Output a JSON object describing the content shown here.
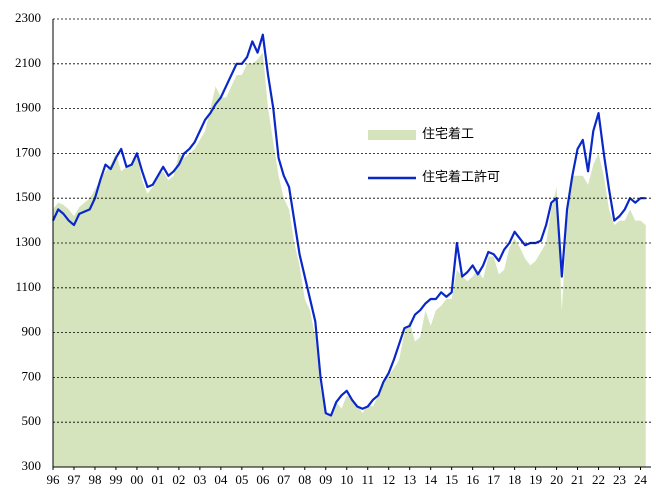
{
  "chart_data": {
    "type": "area-line",
    "x": [
      1996,
      1996.25,
      1996.5,
      1996.75,
      1997,
      1997.25,
      1997.5,
      1997.75,
      1998,
      1998.25,
      1998.5,
      1998.75,
      1999,
      1999.25,
      1999.5,
      1999.75,
      2000,
      2000.25,
      2000.5,
      2000.75,
      2001,
      2001.25,
      2001.5,
      2001.75,
      2002,
      2002.25,
      2002.5,
      2002.75,
      2003,
      2003.25,
      2003.5,
      2003.75,
      2004,
      2004.25,
      2004.5,
      2004.75,
      2005,
      2005.25,
      2005.5,
      2005.75,
      2006,
      2006.25,
      2006.5,
      2006.75,
      2007,
      2007.25,
      2007.5,
      2007.75,
      2008,
      2008.25,
      2008.5,
      2008.75,
      2009,
      2009.25,
      2009.5,
      2009.75,
      2010,
      2010.25,
      2010.5,
      2010.75,
      2011,
      2011.25,
      2011.5,
      2011.75,
      2012,
      2012.25,
      2012.5,
      2012.75,
      2013,
      2013.25,
      2013.5,
      2013.75,
      2014,
      2014.25,
      2014.5,
      2014.75,
      2015,
      2015.25,
      2015.5,
      2015.75,
      2016,
      2016.25,
      2016.5,
      2016.75,
      2017,
      2017.25,
      2017.5,
      2017.75,
      2018,
      2018.25,
      2018.5,
      2018.75,
      2019,
      2019.25,
      2019.5,
      2019.75,
      2020,
      2020.25,
      2020.5,
      2020.75,
      2021,
      2021.25,
      2021.5,
      2021.75,
      2022,
      2022.25,
      2022.5,
      2022.75,
      2023,
      2023.25,
      2023.5,
      2023.75,
      2024,
      2024.25
    ],
    "series": [
      {
        "name": "住宅着工",
        "color": "#d6e4bd",
        "values": [
          1450,
          1480,
          1470,
          1450,
          1420,
          1460,
          1480,
          1500,
          1540,
          1580,
          1620,
          1650,
          1700,
          1620,
          1640,
          1650,
          1700,
          1580,
          1520,
          1550,
          1600,
          1620,
          1580,
          1600,
          1700,
          1680,
          1700,
          1720,
          1760,
          1800,
          1900,
          2000,
          1950,
          1950,
          2000,
          2050,
          2050,
          2100,
          2100,
          2120,
          2150,
          1900,
          1750,
          1600,
          1500,
          1450,
          1300,
          1200,
          1050,
          1000,
          880,
          650,
          530,
          540,
          590,
          560,
          620,
          600,
          580,
          540,
          580,
          570,
          620,
          680,
          710,
          740,
          780,
          900,
          950,
          860,
          880,
          1000,
          930,
          1000,
          1020,
          1050,
          1050,
          1180,
          1150,
          1130,
          1150,
          1180,
          1140,
          1240,
          1240,
          1160,
          1180,
          1280,
          1320,
          1280,
          1230,
          1200,
          1220,
          1260,
          1300,
          1450,
          1550,
          1000,
          1400,
          1600,
          1600,
          1600,
          1560,
          1650,
          1700,
          1600,
          1450,
          1380,
          1400,
          1400,
          1450,
          1400,
          1400,
          1380
        ]
      },
      {
        "name": "住宅着工許可",
        "color": "#0a28c8",
        "values": [
          1400,
          1450,
          1430,
          1400,
          1380,
          1430,
          1440,
          1450,
          1500,
          1580,
          1650,
          1630,
          1680,
          1720,
          1640,
          1650,
          1700,
          1620,
          1550,
          1560,
          1600,
          1640,
          1600,
          1620,
          1650,
          1700,
          1720,
          1750,
          1800,
          1850,
          1880,
          1920,
          1950,
          2000,
          2050,
          2100,
          2100,
          2130,
          2200,
          2150,
          2230,
          2050,
          1900,
          1680,
          1600,
          1550,
          1400,
          1250,
          1150,
          1050,
          950,
          700,
          540,
          530,
          590,
          620,
          640,
          600,
          570,
          560,
          570,
          600,
          620,
          680,
          720,
          780,
          850,
          920,
          930,
          980,
          1000,
          1030,
          1050,
          1050,
          1080,
          1060,
          1080,
          1300,
          1150,
          1170,
          1200,
          1160,
          1200,
          1260,
          1250,
          1220,
          1270,
          1300,
          1350,
          1320,
          1290,
          1300,
          1300,
          1310,
          1380,
          1480,
          1500,
          1150,
          1450,
          1600,
          1720,
          1760,
          1620,
          1800,
          1880,
          1700,
          1540,
          1400,
          1420,
          1450,
          1500,
          1480,
          1500,
          1500
        ]
      }
    ],
    "xlim": [
      1996,
      2024.5
    ],
    "xticks": [
      {
        "value": 1996,
        "label": "96"
      },
      {
        "value": 1997,
        "label": "97"
      },
      {
        "value": 1998,
        "label": "98"
      },
      {
        "value": 1999,
        "label": "99"
      },
      {
        "value": 2000,
        "label": "00"
      },
      {
        "value": 2001,
        "label": "01"
      },
      {
        "value": 2002,
        "label": "02"
      },
      {
        "value": 2003,
        "label": "03"
      },
      {
        "value": 2004,
        "label": "04"
      },
      {
        "value": 2005,
        "label": "05"
      },
      {
        "value": 2006,
        "label": "06"
      },
      {
        "value": 2007,
        "label": "07"
      },
      {
        "value": 2008,
        "label": "08"
      },
      {
        "value": 2009,
        "label": "09"
      },
      {
        "value": 2010,
        "label": "10"
      },
      {
        "value": 2011,
        "label": "11"
      },
      {
        "value": 2012,
        "label": "12"
      },
      {
        "value": 2013,
        "label": "13"
      },
      {
        "value": 2014,
        "label": "14"
      },
      {
        "value": 2015,
        "label": "15"
      },
      {
        "value": 2016,
        "label": "16"
      },
      {
        "value": 2017,
        "label": "17"
      },
      {
        "value": 2018,
        "label": "18"
      },
      {
        "value": 2019,
        "label": "19"
      },
      {
        "value": 2020,
        "label": "20"
      },
      {
        "value": 2021,
        "label": "21"
      },
      {
        "value": 2022,
        "label": "22"
      },
      {
        "value": 2023,
        "label": "23"
      },
      {
        "value": 2024,
        "label": "24"
      }
    ],
    "ylim": [
      300,
      2300
    ],
    "yticks": [
      300,
      500,
      700,
      900,
      1100,
      1300,
      1500,
      1700,
      1900,
      2100,
      2300
    ],
    "grid": true,
    "legend": "center"
  }
}
